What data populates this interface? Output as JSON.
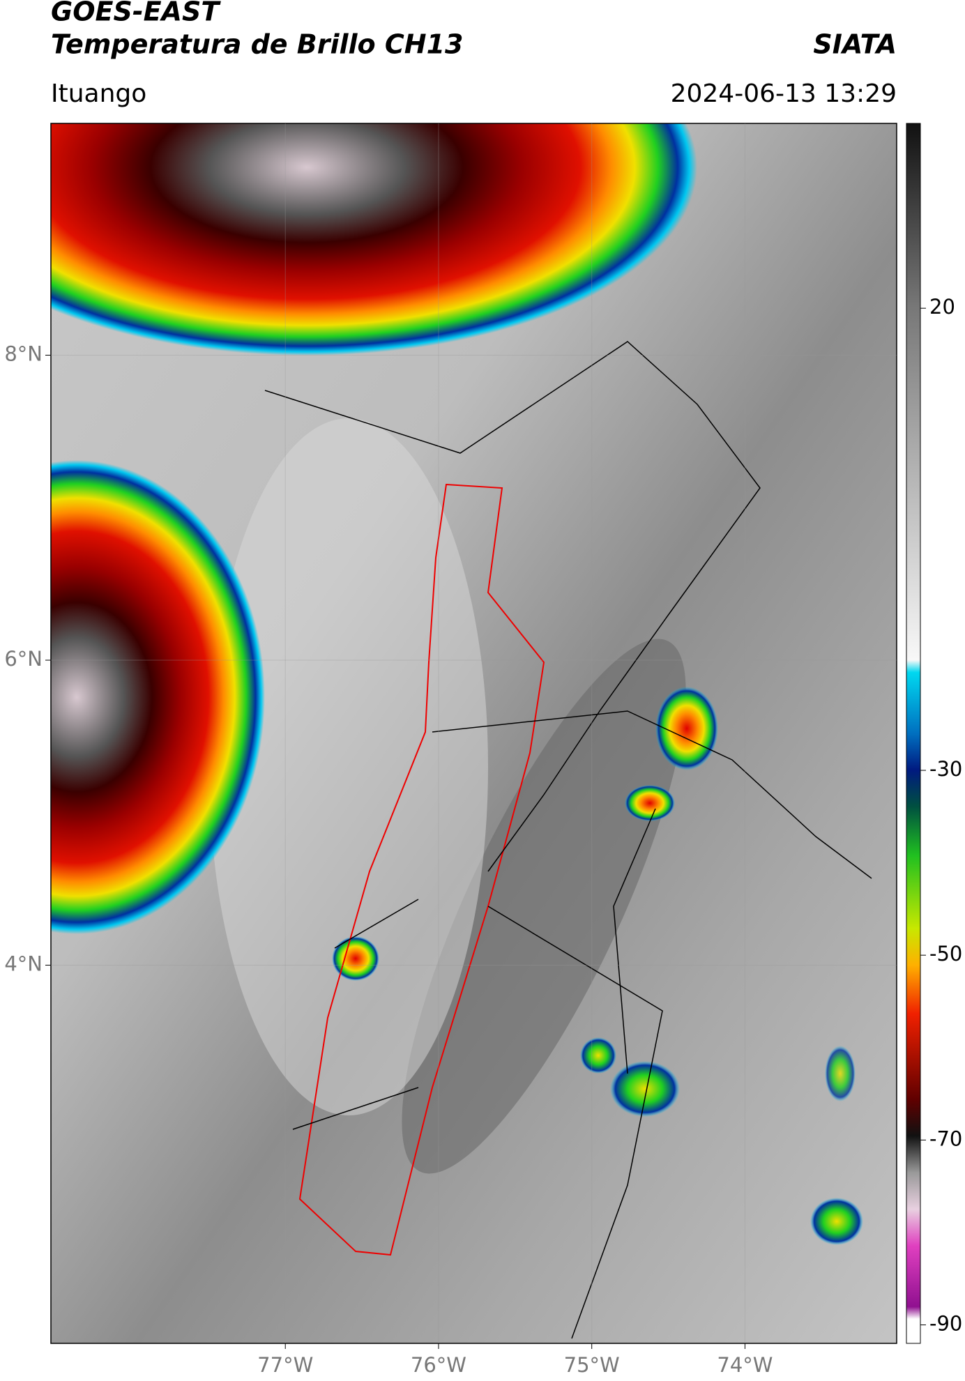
{
  "header": {
    "title": "GOES-EAST",
    "subtitle": "Temperatura de Brillo CH13",
    "source": "SIATA",
    "region": "Ituango",
    "datetime": "2024-06-13 13:29"
  },
  "map": {
    "xlim": [
      -78.53,
      -73.01
    ],
    "ylim": [
      1.52,
      9.52
    ],
    "xticks": [
      {
        "value": -77,
        "label": "77°W"
      },
      {
        "value": -76,
        "label": "76°W"
      },
      {
        "value": -75,
        "label": "75°W"
      },
      {
        "value": -74,
        "label": "74°W"
      }
    ],
    "yticks": [
      {
        "value": 8,
        "label": "8°N"
      },
      {
        "value": 6,
        "label": "6°N"
      },
      {
        "value": 4,
        "label": "4°N"
      }
    ]
  },
  "colorbar": {
    "clim": [
      -92,
      40
    ],
    "ticks": [
      20,
      -30,
      -50,
      -70,
      -90
    ]
  }
}
